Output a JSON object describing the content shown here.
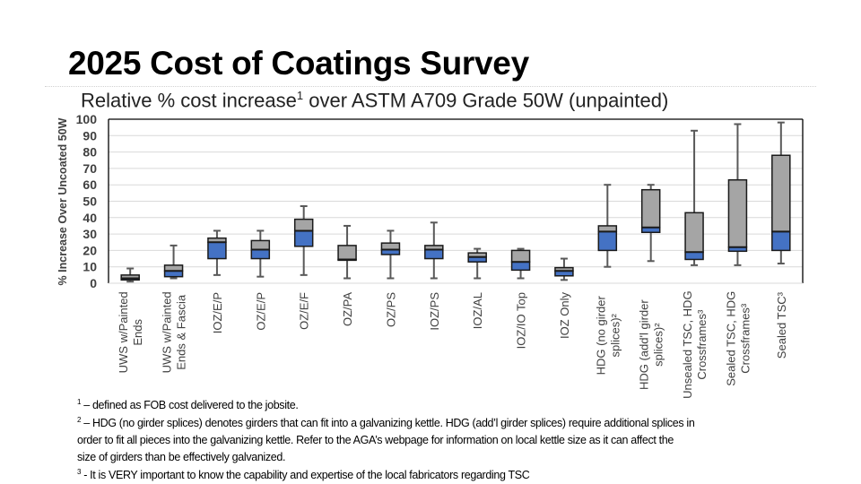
{
  "slide": {
    "title": "2025 Cost of Coatings Survey",
    "subtitle_pre": "Relative % cost increase",
    "subtitle_sup": "1",
    "subtitle_post": " over ASTM A709 Grade 50W (unpainted)"
  },
  "footnotes": [
    {
      "mark": "1",
      "text": " – defined as FOB cost delivered to the jobsite."
    },
    {
      "mark": "2",
      "text": " – HDG (no girder splices) denotes girders that can fit into a galvanizing kettle. HDG (add’l girder splices) require additional splices in"
    },
    {
      "mark": "",
      "text": "order to fit all pieces into the galvanizing kettle.  Refer to the AGA’s webpage for information on local kettle size as it can affect the"
    },
    {
      "mark": "",
      "text": "size of girders than be effectively galvanized."
    },
    {
      "mark": "3",
      "text": " - It is VERY important  to know the capability and expertise of the local fabricators regarding TSC"
    }
  ],
  "chart_data": {
    "type": "boxplot",
    "title": "",
    "xlabel": "",
    "ylabel": "% Increase Over Uncoated 50W",
    "ylim": [
      0,
      100
    ],
    "yticks": [
      0,
      10,
      20,
      30,
      40,
      50,
      60,
      70,
      80,
      90,
      100
    ],
    "grid": true,
    "colors": {
      "lower_box": "#4472C4",
      "upper_box": "#A5A5A5",
      "outline": "#1a1a1a",
      "whisker": "#595959",
      "grid": "#d9d9d9"
    },
    "categories": [
      [
        "UWS w/Painted",
        "Ends"
      ],
      [
        "UWS w/Painted",
        "Ends & Fascia"
      ],
      [
        "IOZ/E/P"
      ],
      [
        "OZ/E/P"
      ],
      [
        "OZ/E/F"
      ],
      [
        "OZ/PA"
      ],
      [
        "OZ/PS"
      ],
      [
        "IOZ/PS"
      ],
      [
        "IOZ/AL"
      ],
      [
        "IOZ/IO Top"
      ],
      [
        "IOZ Only"
      ],
      [
        "HDG (no girder",
        "splices)²"
      ],
      [
        "HDG (add'l girder",
        "splices)²"
      ],
      [
        "Unsealed TSC, HDG",
        "Crossframes³"
      ],
      [
        "Sealed TSC, HDG",
        "Crossframes³"
      ],
      [
        "Sealed TSC³"
      ]
    ],
    "boxes": [
      {
        "min": 1,
        "q1": 2,
        "median": 3,
        "q3": 5,
        "max": 9
      },
      {
        "min": 3,
        "q1": 4,
        "median": 7.5,
        "q3": 11,
        "max": 23
      },
      {
        "min": 5,
        "q1": 15,
        "median": 25,
        "q3": 27.5,
        "max": 32
      },
      {
        "min": 4,
        "q1": 15,
        "median": 20.5,
        "q3": 26,
        "max": 32
      },
      {
        "min": 5,
        "q1": 22.5,
        "median": 32,
        "q3": 39,
        "max": 47
      },
      {
        "min": 3,
        "q1": 14,
        "median": 14.5,
        "q3": 23,
        "max": 35
      },
      {
        "min": 3,
        "q1": 17.5,
        "median": 20.5,
        "q3": 24.5,
        "max": 32
      },
      {
        "min": 3,
        "q1": 15,
        "median": 20.5,
        "q3": 23,
        "max": 37
      },
      {
        "min": 3,
        "q1": 13,
        "median": 16,
        "q3": 18.5,
        "max": 21
      },
      {
        "min": 3,
        "q1": 8,
        "median": 13,
        "q3": 20,
        "max": 21
      },
      {
        "min": 2,
        "q1": 4.5,
        "median": 7.5,
        "q3": 9.5,
        "max": 15
      },
      {
        "min": 10,
        "q1": 20,
        "median": 31.5,
        "q3": 35,
        "max": 60
      },
      {
        "min": 13.5,
        "q1": 31,
        "median": 34,
        "q3": 57,
        "max": 60
      },
      {
        "min": 11,
        "q1": 14.5,
        "median": 19,
        "q3": 43,
        "max": 93
      },
      {
        "min": 11,
        "q1": 19.5,
        "median": 22,
        "q3": 63,
        "max": 97
      },
      {
        "min": 12,
        "q1": 20,
        "median": 31.5,
        "q3": 78,
        "max": 98
      }
    ]
  }
}
